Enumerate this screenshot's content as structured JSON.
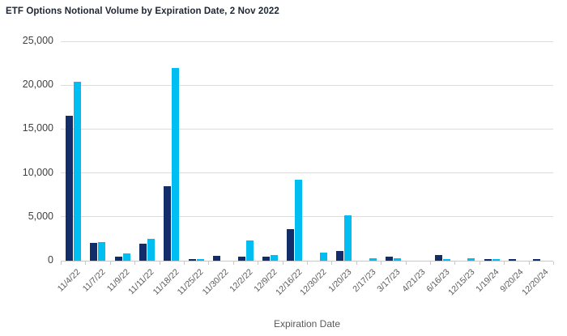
{
  "title": "ETF Options Notional Volume by Expiration Date, 2 Nov 2022",
  "chart_data": {
    "type": "bar",
    "title": "ETF Options Notional Volume by Expiration Date, 2 Nov 2022",
    "xlabel": "Expiration Date",
    "ylabel": "",
    "ylim": [
      0,
      25000
    ],
    "ytick_interval": 5000,
    "ytick_labels": [
      "0",
      "5,000",
      "10,000",
      "15,000",
      "20,000",
      "25,000"
    ],
    "grid": true,
    "legend_position": "none",
    "categories": [
      "11/4/22",
      "11/7/22",
      "11/9/22",
      "11/11/22",
      "11/18/22",
      "11/25/22",
      "11/30/22",
      "12/2/22",
      "12/9/22",
      "12/16/22",
      "12/30/22",
      "1/20/23",
      "2/17/23",
      "3/17/23",
      "4/21/23",
      "6/16/23",
      "12/15/23",
      "1/19/24",
      "9/20/24",
      "12/20/24"
    ],
    "series": [
      {
        "name": "navy",
        "color": "#122d69",
        "values": [
          16500,
          2000,
          500,
          1900,
          8500,
          180,
          550,
          430,
          430,
          3600,
          0,
          1100,
          0,
          450,
          0,
          600,
          0,
          200,
          200,
          200
        ]
      },
      {
        "name": "cyan",
        "color": "#00bdf2",
        "values": [
          20400,
          2100,
          800,
          2500,
          22000,
          170,
          0,
          2300,
          600,
          9200,
          900,
          5200,
          250,
          270,
          0,
          200,
          250,
          200,
          0,
          0
        ]
      }
    ]
  },
  "colors": {
    "background": "#ffffff",
    "title_text": "#1d2633",
    "xtick_labels": "#595959",
    "ytick_labels": "#404040",
    "axis_title": "#595959",
    "gridline": "#dcdcdc",
    "axis_line": "#c8c8c8",
    "series_navy": "#122d69",
    "series_cyan": "#00bdf2"
  }
}
